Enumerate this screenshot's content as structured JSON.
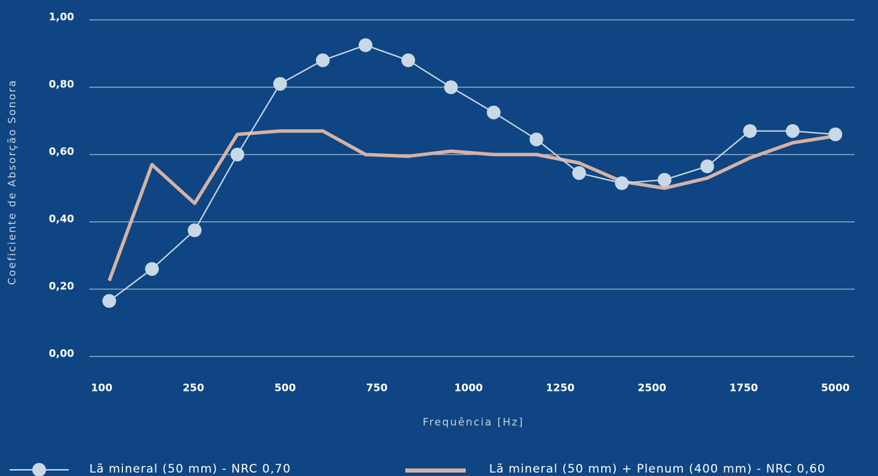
{
  "chart_data": {
    "type": "line",
    "x_label": "Frequência [Hz]",
    "y_label": "Coeficiente de Absorção Sonora",
    "x_tick_labels": [
      "100",
      "250",
      "500",
      "750",
      "1000",
      "1250",
      "2500",
      "1750",
      "5000"
    ],
    "ylim": [
      0,
      1
    ],
    "yticks": [
      {
        "value": 0,
        "label": "0,00"
      },
      {
        "value": 0.2,
        "label": "0,20"
      },
      {
        "value": 0.4,
        "label": "0,40"
      },
      {
        "value": 0.6,
        "label": "0,60"
      },
      {
        "value": 0.8,
        "label": "0,80"
      },
      {
        "value": 1,
        "label": "1,00"
      }
    ],
    "grid": true,
    "series": [
      {
        "name": "Lã mineral (50 mm) - NRC 0,70",
        "color": "#c8d8e6",
        "marker": "circle",
        "values": [
          0.165,
          0.26,
          0.375,
          0.6,
          0.81,
          0.88,
          0.925,
          0.88,
          0.8,
          0.725,
          0.645,
          0.545,
          0.515,
          0.525,
          0.565,
          0.67,
          0.67,
          0.66
        ]
      },
      {
        "name": "Lã mineral (50 mm) + Plenum (400 mm) - NRC 0,60",
        "color": "#d5b2a6",
        "marker": "none",
        "values": [
          0.225,
          0.57,
          0.455,
          0.66,
          0.67,
          0.67,
          0.6,
          0.595,
          0.61,
          0.6,
          0.6,
          0.575,
          0.52,
          0.5,
          0.53,
          0.59,
          0.635,
          0.655
        ]
      }
    ]
  }
}
